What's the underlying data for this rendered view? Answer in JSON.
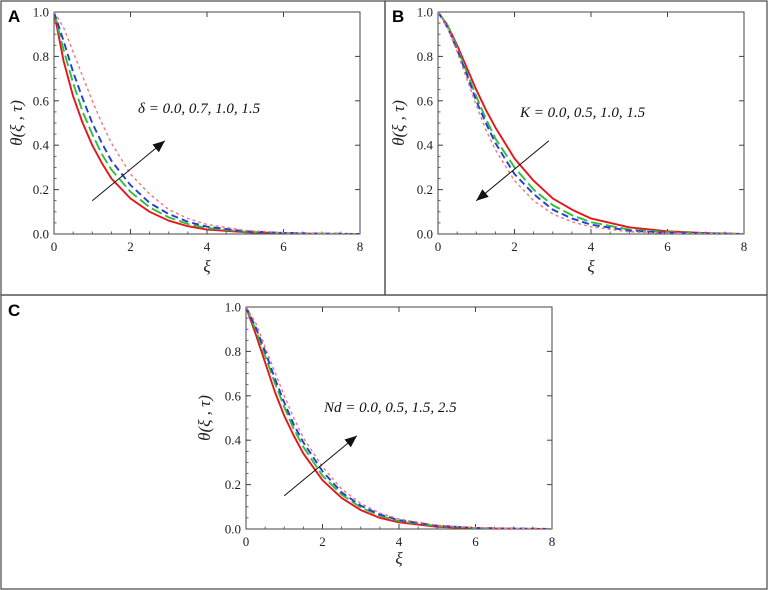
{
  "chart_data": [
    {
      "panel": "A",
      "type": "line",
      "xlabel": "ξ",
      "ylabel": "θ(ξ , τ)",
      "xlim": [
        0,
        8
      ],
      "ylim": [
        0,
        1
      ],
      "xticks": [
        "0",
        "2",
        "4",
        "6",
        "8"
      ],
      "yticks": [
        "0.0",
        "0.2",
        "0.4",
        "0.6",
        "0.8",
        "1.0"
      ],
      "annotation": "δ = 0.0, 0.7, 1.0, 1.5",
      "arrow": {
        "direction": "up",
        "from": [
          1.0,
          0.15
        ],
        "to": [
          2.9,
          0.42
        ]
      },
      "grid": false,
      "legend": "none",
      "series": [
        {
          "color": "#e8141c",
          "dash": "solid",
          "x": [
            0,
            0.25,
            0.5,
            0.75,
            1,
            1.25,
            1.5,
            2,
            2.5,
            3,
            3.5,
            4,
            5,
            6,
            7,
            8
          ],
          "y": [
            1.0,
            0.78,
            0.62,
            0.5,
            0.4,
            0.32,
            0.25,
            0.16,
            0.1,
            0.06,
            0.035,
            0.02,
            0.008,
            0.003,
            0.001,
            0.0
          ]
        },
        {
          "color": "#2fbf3a",
          "dash": "longdash",
          "x": [
            0,
            0.25,
            0.5,
            0.75,
            1,
            1.25,
            1.5,
            2,
            2.5,
            3,
            3.5,
            4,
            5,
            6,
            7,
            8
          ],
          "y": [
            1.0,
            0.83,
            0.68,
            0.55,
            0.45,
            0.36,
            0.29,
            0.19,
            0.12,
            0.075,
            0.045,
            0.027,
            0.01,
            0.004,
            0.001,
            0.0
          ]
        },
        {
          "color": "#1f3fd6",
          "dash": "dash",
          "x": [
            0,
            0.25,
            0.5,
            0.75,
            1,
            1.25,
            1.5,
            2,
            2.5,
            3,
            3.5,
            4,
            5,
            6,
            7,
            8
          ],
          "y": [
            1.0,
            0.87,
            0.73,
            0.61,
            0.5,
            0.41,
            0.33,
            0.22,
            0.14,
            0.09,
            0.055,
            0.033,
            0.012,
            0.005,
            0.002,
            0.0
          ]
        },
        {
          "color": "#f07878",
          "dash": "shortdash",
          "x": [
            0,
            0.25,
            0.5,
            0.75,
            1,
            1.25,
            1.5,
            2,
            2.5,
            3,
            3.5,
            4,
            5,
            6,
            7,
            8
          ],
          "y": [
            1.0,
            0.93,
            0.82,
            0.71,
            0.6,
            0.5,
            0.41,
            0.27,
            0.18,
            0.11,
            0.07,
            0.043,
            0.016,
            0.006,
            0.002,
            0.0
          ]
        }
      ]
    },
    {
      "panel": "B",
      "type": "line",
      "xlabel": "ξ",
      "ylabel": "θ(ξ , τ)",
      "xlim": [
        0,
        8
      ],
      "ylim": [
        0,
        1
      ],
      "xticks": [
        "0",
        "2",
        "4",
        "6",
        "8"
      ],
      "yticks": [
        "0.0",
        "0.2",
        "0.4",
        "0.6",
        "0.8",
        "1.0"
      ],
      "annotation": "K = 0.0, 0.5, 1.0, 1.5",
      "arrow": {
        "direction": "down",
        "from": [
          2.9,
          0.42
        ],
        "to": [
          1.0,
          0.15
        ]
      },
      "grid": false,
      "legend": "none",
      "series": [
        {
          "color": "#e8141c",
          "dash": "solid",
          "x": [
            0,
            0.25,
            0.5,
            0.75,
            1,
            1.25,
            1.5,
            2,
            2.5,
            3,
            3.5,
            4,
            5,
            6,
            7,
            8
          ],
          "y": [
            1.0,
            0.94,
            0.85,
            0.75,
            0.65,
            0.56,
            0.48,
            0.34,
            0.24,
            0.16,
            0.11,
            0.07,
            0.03,
            0.012,
            0.004,
            0.0
          ]
        },
        {
          "color": "#2fbf3a",
          "dash": "longdash",
          "x": [
            0,
            0.25,
            0.5,
            0.75,
            1,
            1.25,
            1.5,
            2,
            2.5,
            3,
            3.5,
            4,
            5,
            6,
            7,
            8
          ],
          "y": [
            1.0,
            0.94,
            0.84,
            0.73,
            0.62,
            0.52,
            0.43,
            0.3,
            0.2,
            0.13,
            0.085,
            0.053,
            0.02,
            0.008,
            0.003,
            0.0
          ]
        },
        {
          "color": "#1f3fd6",
          "dash": "dash",
          "x": [
            0,
            0.25,
            0.5,
            0.75,
            1,
            1.25,
            1.5,
            2,
            2.5,
            3,
            3.5,
            4,
            5,
            6,
            7,
            8
          ],
          "y": [
            1.0,
            0.93,
            0.83,
            0.72,
            0.6,
            0.5,
            0.41,
            0.27,
            0.18,
            0.11,
            0.07,
            0.042,
            0.015,
            0.005,
            0.002,
            0.0
          ]
        },
        {
          "color": "#f07878",
          "dash": "shortdash",
          "x": [
            0,
            0.25,
            0.5,
            0.75,
            1,
            1.25,
            1.5,
            2,
            2.5,
            3,
            3.5,
            4,
            5,
            6,
            7,
            8
          ],
          "y": [
            1.0,
            0.93,
            0.82,
            0.7,
            0.58,
            0.47,
            0.38,
            0.24,
            0.15,
            0.09,
            0.055,
            0.032,
            0.01,
            0.003,
            0.001,
            0.0
          ]
        }
      ]
    },
    {
      "panel": "C",
      "type": "line",
      "xlabel": "ξ",
      "ylabel": "θ(ξ , τ)",
      "xlim": [
        0,
        8
      ],
      "ylim": [
        0,
        1
      ],
      "xticks": [
        "0",
        "2",
        "4",
        "6",
        "8"
      ],
      "yticks": [
        "0.0",
        "0.2",
        "0.4",
        "0.6",
        "0.8",
        "1.0"
      ],
      "annotation": "Nd = 0.0, 0.5, 1.5, 2.5",
      "arrow": {
        "direction": "up",
        "from": [
          1.0,
          0.15
        ],
        "to": [
          2.9,
          0.42
        ]
      },
      "grid": false,
      "legend": "none",
      "series": [
        {
          "color": "#e8141c",
          "dash": "solid",
          "x": [
            0,
            0.25,
            0.5,
            0.75,
            1,
            1.25,
            1.5,
            2,
            2.5,
            3,
            3.5,
            4,
            5,
            6,
            7,
            8
          ],
          "y": [
            1.0,
            0.88,
            0.75,
            0.62,
            0.51,
            0.42,
            0.34,
            0.22,
            0.14,
            0.085,
            0.05,
            0.03,
            0.01,
            0.003,
            0.001,
            0.0
          ]
        },
        {
          "color": "#2fbf3a",
          "dash": "longdash",
          "x": [
            0,
            0.25,
            0.5,
            0.75,
            1,
            1.25,
            1.5,
            2,
            2.5,
            3,
            3.5,
            4,
            5,
            6,
            7,
            8
          ],
          "y": [
            1.0,
            0.9,
            0.78,
            0.66,
            0.55,
            0.45,
            0.37,
            0.24,
            0.155,
            0.097,
            0.06,
            0.036,
            0.013,
            0.004,
            0.001,
            0.0
          ]
        },
        {
          "color": "#1f3fd6",
          "dash": "dash",
          "x": [
            0,
            0.25,
            0.5,
            0.75,
            1,
            1.25,
            1.5,
            2,
            2.5,
            3,
            3.5,
            4,
            5,
            6,
            7,
            8
          ],
          "y": [
            1.0,
            0.91,
            0.8,
            0.68,
            0.57,
            0.47,
            0.39,
            0.26,
            0.165,
            0.105,
            0.065,
            0.04,
            0.015,
            0.005,
            0.002,
            0.0
          ]
        },
        {
          "color": "#f07878",
          "dash": "shortdash",
          "x": [
            0,
            0.25,
            0.5,
            0.75,
            1,
            1.25,
            1.5,
            2,
            2.5,
            3,
            3.5,
            4,
            5,
            6,
            7,
            8
          ],
          "y": [
            1.0,
            0.93,
            0.82,
            0.71,
            0.6,
            0.5,
            0.41,
            0.28,
            0.18,
            0.115,
            0.072,
            0.045,
            0.017,
            0.006,
            0.002,
            0.0
          ]
        }
      ]
    }
  ]
}
